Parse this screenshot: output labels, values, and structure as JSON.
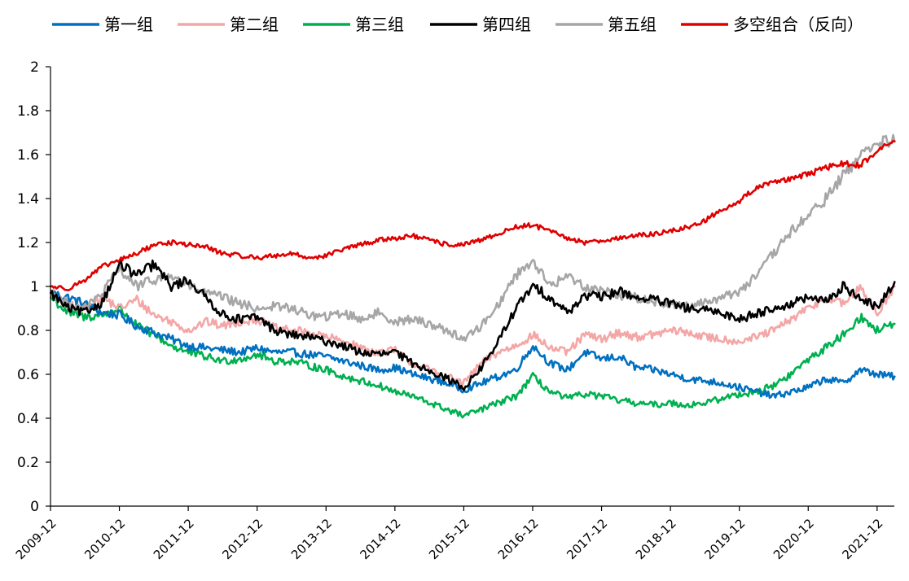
{
  "chart_data": {
    "type": "line",
    "title": "",
    "xlabel": "",
    "ylabel": "",
    "ylim": [
      0,
      2
    ],
    "yticks": [
      "0",
      "0.2",
      "0.4",
      "0.6",
      "0.8",
      "1",
      "1.2",
      "1.4",
      "1.6",
      "1.8",
      "2"
    ],
    "x_ticks": [
      "2009-12",
      "2010-12",
      "2011-12",
      "2012-12",
      "2013-12",
      "2014-12",
      "2015-12",
      "2016-12",
      "2017-12",
      "2018-12",
      "2019-12",
      "2020-12",
      "2021-12"
    ],
    "x_range": [
      2009.917,
      2022.167
    ],
    "grid": false,
    "legend_position": "top",
    "series": [
      {
        "name": "第一组",
        "color": "#0070C0",
        "x": [
          2009.92,
          2010.17,
          2010.42,
          2010.67,
          2010.92,
          2011.17,
          2011.42,
          2011.67,
          2011.92,
          2012.17,
          2012.42,
          2012.67,
          2012.92,
          2013.17,
          2013.42,
          2013.67,
          2013.92,
          2014.17,
          2014.42,
          2014.67,
          2014.92,
          2015.17,
          2015.42,
          2015.67,
          2015.92,
          2016.17,
          2016.42,
          2016.67,
          2016.92,
          2017.17,
          2017.42,
          2017.67,
          2017.92,
          2018.17,
          2018.42,
          2018.67,
          2018.92,
          2019.17,
          2019.42,
          2019.67,
          2019.92,
          2020.17,
          2020.42,
          2020.67,
          2020.92,
          2021.17,
          2021.42,
          2021.67,
          2021.92,
          2022.17
        ],
        "values": [
          0.97,
          0.95,
          0.92,
          0.88,
          0.87,
          0.82,
          0.79,
          0.76,
          0.73,
          0.72,
          0.71,
          0.7,
          0.72,
          0.7,
          0.7,
          0.69,
          0.68,
          0.66,
          0.64,
          0.62,
          0.63,
          0.6,
          0.58,
          0.56,
          0.53,
          0.56,
          0.59,
          0.62,
          0.73,
          0.65,
          0.62,
          0.7,
          0.67,
          0.68,
          0.63,
          0.62,
          0.6,
          0.58,
          0.57,
          0.56,
          0.54,
          0.52,
          0.5,
          0.52,
          0.54,
          0.58,
          0.56,
          0.62,
          0.6,
          0.59
        ]
      },
      {
        "name": "第二组",
        "color": "#F4A6A6",
        "x": [
          2009.92,
          2010.17,
          2010.42,
          2010.67,
          2010.92,
          2011.17,
          2011.42,
          2011.67,
          2011.92,
          2012.17,
          2012.42,
          2012.67,
          2012.92,
          2013.17,
          2013.42,
          2013.67,
          2013.92,
          2014.17,
          2014.42,
          2014.67,
          2014.92,
          2015.17,
          2015.42,
          2015.67,
          2015.92,
          2016.17,
          2016.42,
          2016.67,
          2016.92,
          2017.17,
          2017.42,
          2017.67,
          2017.92,
          2018.17,
          2018.42,
          2018.67,
          2018.92,
          2019.17,
          2019.42,
          2019.67,
          2019.92,
          2020.17,
          2020.42,
          2020.67,
          2020.92,
          2021.17,
          2021.42,
          2021.67,
          2021.92,
          2022.17
        ],
        "values": [
          0.98,
          0.92,
          0.9,
          0.95,
          0.9,
          0.94,
          0.87,
          0.84,
          0.8,
          0.84,
          0.82,
          0.84,
          0.85,
          0.81,
          0.8,
          0.79,
          0.77,
          0.75,
          0.72,
          0.7,
          0.71,
          0.65,
          0.62,
          0.59,
          0.56,
          0.65,
          0.7,
          0.73,
          0.78,
          0.72,
          0.7,
          0.78,
          0.76,
          0.79,
          0.77,
          0.78,
          0.8,
          0.79,
          0.77,
          0.76,
          0.75,
          0.77,
          0.8,
          0.85,
          0.9,
          0.95,
          0.92,
          0.99,
          0.88,
          1.0
        ]
      },
      {
        "name": "第三组",
        "color": "#00B050",
        "x": [
          2009.92,
          2010.17,
          2010.42,
          2010.67,
          2010.92,
          2011.17,
          2011.42,
          2011.67,
          2011.92,
          2012.17,
          2012.42,
          2012.67,
          2012.92,
          2013.17,
          2013.42,
          2013.67,
          2013.92,
          2014.17,
          2014.42,
          2014.67,
          2014.92,
          2015.17,
          2015.42,
          2015.67,
          2015.92,
          2016.17,
          2016.42,
          2016.67,
          2016.92,
          2017.17,
          2017.42,
          2017.67,
          2017.92,
          2018.17,
          2018.42,
          2018.67,
          2018.92,
          2019.17,
          2019.42,
          2019.67,
          2019.92,
          2020.17,
          2020.42,
          2020.67,
          2020.92,
          2021.17,
          2021.42,
          2021.67,
          2021.92,
          2022.17
        ],
        "values": [
          0.95,
          0.88,
          0.86,
          0.87,
          0.9,
          0.82,
          0.78,
          0.73,
          0.7,
          0.68,
          0.66,
          0.67,
          0.69,
          0.66,
          0.66,
          0.64,
          0.62,
          0.59,
          0.57,
          0.55,
          0.52,
          0.5,
          0.47,
          0.44,
          0.41,
          0.44,
          0.47,
          0.5,
          0.59,
          0.52,
          0.49,
          0.51,
          0.5,
          0.48,
          0.47,
          0.46,
          0.47,
          0.46,
          0.47,
          0.49,
          0.51,
          0.52,
          0.55,
          0.6,
          0.67,
          0.72,
          0.78,
          0.86,
          0.8,
          0.83
        ]
      },
      {
        "name": "第四组",
        "color": "#000000",
        "x": [
          2009.92,
          2010.17,
          2010.42,
          2010.67,
          2010.92,
          2011.17,
          2011.42,
          2011.67,
          2011.92,
          2012.17,
          2012.42,
          2012.67,
          2012.92,
          2013.17,
          2013.42,
          2013.67,
          2013.92,
          2014.17,
          2014.42,
          2014.67,
          2014.92,
          2015.17,
          2015.42,
          2015.67,
          2015.92,
          2016.17,
          2016.42,
          2016.67,
          2016.92,
          2017.17,
          2017.42,
          2017.67,
          2017.92,
          2018.17,
          2018.42,
          2018.67,
          2018.92,
          2019.17,
          2019.42,
          2019.67,
          2019.92,
          2020.17,
          2020.42,
          2020.67,
          2020.92,
          2021.17,
          2021.42,
          2021.67,
          2021.92,
          2022.17
        ],
        "values": [
          0.97,
          0.9,
          0.88,
          0.93,
          1.1,
          1.05,
          1.1,
          1.0,
          1.03,
          0.95,
          0.87,
          0.85,
          0.86,
          0.8,
          0.78,
          0.77,
          0.75,
          0.73,
          0.7,
          0.69,
          0.7,
          0.65,
          0.62,
          0.58,
          0.54,
          0.63,
          0.75,
          0.9,
          1.0,
          0.95,
          0.88,
          0.96,
          0.95,
          0.98,
          0.95,
          0.94,
          0.92,
          0.9,
          0.89,
          0.88,
          0.85,
          0.88,
          0.9,
          0.92,
          0.95,
          0.93,
          1.0,
          0.95,
          0.9,
          1.02
        ]
      },
      {
        "name": "第五组",
        "color": "#A6A6A6",
        "x": [
          2009.92,
          2010.17,
          2010.42,
          2010.67,
          2010.92,
          2011.17,
          2011.42,
          2011.67,
          2011.92,
          2012.17,
          2012.42,
          2012.67,
          2012.92,
          2013.17,
          2013.42,
          2013.67,
          2013.92,
          2014.17,
          2014.42,
          2014.67,
          2014.92,
          2015.17,
          2015.42,
          2015.67,
          2015.92,
          2016.17,
          2016.42,
          2016.67,
          2016.92,
          2017.17,
          2017.42,
          2017.67,
          2017.92,
          2018.17,
          2018.42,
          2018.67,
          2018.92,
          2019.17,
          2019.42,
          2019.67,
          2019.92,
          2020.17,
          2020.42,
          2020.67,
          2020.92,
          2021.17,
          2021.42,
          2021.67,
          2021.92,
          2022.17
        ],
        "values": [
          0.97,
          0.92,
          0.9,
          0.97,
          1.08,
          1.0,
          1.03,
          1.05,
          1.0,
          0.97,
          0.95,
          0.92,
          0.9,
          0.91,
          0.9,
          0.87,
          0.86,
          0.88,
          0.85,
          0.88,
          0.84,
          0.85,
          0.83,
          0.8,
          0.76,
          0.82,
          0.92,
          1.05,
          1.12,
          1.0,
          1.05,
          1.0,
          0.98,
          0.96,
          0.95,
          0.93,
          0.92,
          0.91,
          0.93,
          0.95,
          0.98,
          1.05,
          1.15,
          1.25,
          1.32,
          1.4,
          1.5,
          1.6,
          1.65,
          1.66
        ]
      },
      {
        "name": "多空组合（反向）",
        "color": "#E00000",
        "x": [
          2009.92,
          2010.17,
          2010.42,
          2010.67,
          2010.92,
          2011.17,
          2011.42,
          2011.67,
          2011.92,
          2012.17,
          2012.42,
          2012.67,
          2012.92,
          2013.17,
          2013.42,
          2013.67,
          2013.92,
          2014.17,
          2014.42,
          2014.67,
          2014.92,
          2015.17,
          2015.42,
          2015.67,
          2015.92,
          2016.17,
          2016.42,
          2016.67,
          2016.92,
          2017.17,
          2017.42,
          2017.67,
          2017.92,
          2018.17,
          2018.42,
          2018.67,
          2018.92,
          2019.17,
          2019.42,
          2019.67,
          2019.92,
          2020.17,
          2020.42,
          2020.67,
          2020.92,
          2021.17,
          2021.42,
          2021.67,
          2021.92,
          2022.17
        ],
        "values": [
          1.0,
          0.99,
          1.03,
          1.09,
          1.12,
          1.15,
          1.19,
          1.2,
          1.19,
          1.18,
          1.15,
          1.14,
          1.13,
          1.14,
          1.15,
          1.13,
          1.14,
          1.17,
          1.19,
          1.21,
          1.22,
          1.23,
          1.21,
          1.19,
          1.19,
          1.21,
          1.24,
          1.27,
          1.28,
          1.25,
          1.22,
          1.2,
          1.21,
          1.22,
          1.23,
          1.24,
          1.25,
          1.27,
          1.3,
          1.35,
          1.39,
          1.45,
          1.48,
          1.49,
          1.51,
          1.54,
          1.56,
          1.55,
          1.62,
          1.66
        ]
      }
    ]
  }
}
